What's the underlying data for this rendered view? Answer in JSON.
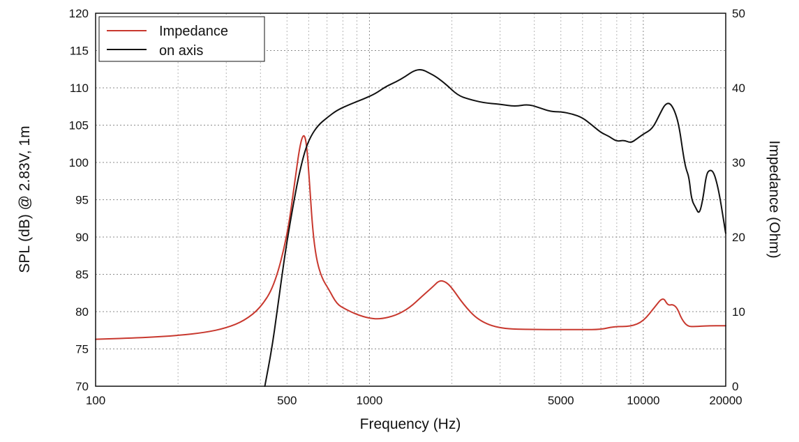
{
  "chart_data": {
    "type": "line",
    "xlabel": "Frequency (Hz)",
    "ylabel": "SPL (dB) @ 2.83V, 1m",
    "y2label": "Impedance (Ohm)",
    "xscale": "log",
    "xlim": [
      100,
      20000
    ],
    "ylim": [
      70,
      120
    ],
    "y2lim": [
      0,
      50
    ],
    "x_tick_labels": [
      {
        "value": 100,
        "label": "100"
      },
      {
        "value": 500,
        "label": "500"
      },
      {
        "value": 1000,
        "label": "1000"
      },
      {
        "value": 5000,
        "label": "5000"
      },
      {
        "value": 10000,
        "label": "10000"
      },
      {
        "value": 20000,
        "label": "20000"
      }
    ],
    "y_tick_labels": [
      {
        "value": 70,
        "label": "70"
      },
      {
        "value": 75,
        "label": "75"
      },
      {
        "value": 80,
        "label": "80"
      },
      {
        "value": 85,
        "label": "85"
      },
      {
        "value": 90,
        "label": "90"
      },
      {
        "value": 95,
        "label": "95"
      },
      {
        "value": 100,
        "label": "100"
      },
      {
        "value": 105,
        "label": "105"
      },
      {
        "value": 110,
        "label": "110"
      },
      {
        "value": 115,
        "label": "115"
      },
      {
        "value": 120,
        "label": "120"
      }
    ],
    "y2_tick_labels": [
      {
        "value": 0,
        "label": "0"
      },
      {
        "value": 10,
        "label": "10"
      },
      {
        "value": 20,
        "label": "20"
      },
      {
        "value": 30,
        "label": "30"
      },
      {
        "value": 40,
        "label": "40"
      },
      {
        "value": 50,
        "label": "50"
      }
    ],
    "grid": true,
    "legend_position": "top-left",
    "series": [
      {
        "name": "Impedance",
        "axis": "right",
        "color": "#c8382e",
        "x": [
          100,
          150,
          200,
          250,
          300,
          350,
          400,
          450,
          500,
          530,
          555,
          575,
          590,
          605,
          620,
          640,
          670,
          710,
          760,
          820,
          900,
          1000,
          1100,
          1250,
          1400,
          1550,
          1700,
          1800,
          1900,
          2000,
          2200,
          2500,
          3000,
          4000,
          5000,
          6000,
          7000,
          7800,
          9000,
          10000,
          11000,
          11800,
          12300,
          12800,
          13300,
          13800,
          14500,
          15500,
          17000,
          20000
        ],
        "values": [
          6.3,
          6.5,
          6.8,
          7.2,
          7.8,
          8.8,
          10.5,
          13.5,
          20.0,
          26.5,
          32.0,
          34.0,
          32.5,
          27.0,
          21.0,
          17.0,
          14.5,
          13.0,
          11.0,
          10.3,
          9.6,
          9.1,
          9.0,
          9.5,
          10.5,
          12.0,
          13.3,
          14.2,
          14.0,
          13.2,
          11.0,
          8.8,
          7.7,
          7.6,
          7.6,
          7.6,
          7.6,
          8.0,
          8.0,
          8.7,
          10.6,
          12.0,
          10.8,
          11.0,
          10.5,
          9.0,
          8.0,
          8.0,
          8.1,
          8.1
        ]
      },
      {
        "name": "on axis",
        "axis": "left",
        "color": "#111111",
        "x": [
          415,
          440,
          460,
          480,
          500,
          525,
          550,
          580,
          610,
          650,
          700,
          760,
          850,
          950,
          1050,
          1150,
          1250,
          1350,
          1450,
          1550,
          1650,
          1750,
          1900,
          2100,
          2300,
          2600,
          3000,
          3400,
          3800,
          4200,
          4600,
          5000,
          5500,
          6000,
          6500,
          7000,
          7500,
          8000,
          8500,
          9000,
          9500,
          10000,
          10800,
          11500,
          12000,
          12500,
          13000,
          13500,
          14000,
          14300,
          14700,
          15000,
          15500,
          16000,
          16500,
          17000,
          17500,
          18000,
          18500,
          19000,
          19500,
          20000
        ],
        "values": [
          70.0,
          75.0,
          80.0,
          85.0,
          89.5,
          94.0,
          98.0,
          101.5,
          103.5,
          105.0,
          106.0,
          107.0,
          107.8,
          108.5,
          109.2,
          110.2,
          110.8,
          111.5,
          112.3,
          112.5,
          112.0,
          111.5,
          110.5,
          109.0,
          108.5,
          108.0,
          107.8,
          107.5,
          107.8,
          107.3,
          106.8,
          106.8,
          106.5,
          106.0,
          105.0,
          104.0,
          103.5,
          102.8,
          103.0,
          102.6,
          103.2,
          103.8,
          104.5,
          106.5,
          107.8,
          108.0,
          107.0,
          105.0,
          101.0,
          99.2,
          98.0,
          95.0,
          94.0,
          93.0,
          95.0,
          98.5,
          99.0,
          98.8,
          97.5,
          95.5,
          93.0,
          90.5
        ]
      }
    ]
  }
}
